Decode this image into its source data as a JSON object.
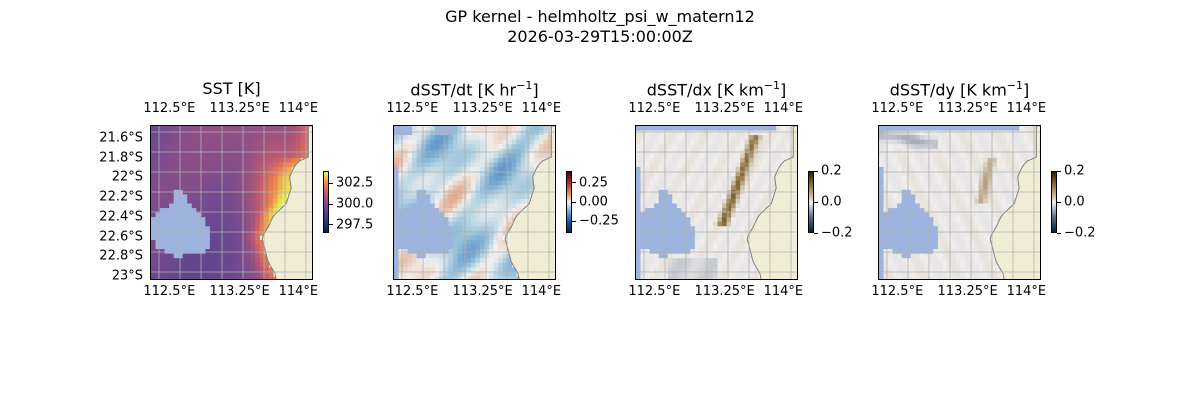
{
  "figure": {
    "title_line1": "GP kernel - helmholtz_psi_w_matern12",
    "title_line2": "2026-03-29T15:00:00Z"
  },
  "colors": {
    "land": "#efedd6",
    "land_edge": "#7f7f7f",
    "masked": "#9db4df",
    "grid": "#b0b0b0",
    "sst_low": "#6b4a8b",
    "sst_high": "#e9784a"
  },
  "chart_data": [
    {
      "type": "heatmap",
      "title": "SST [K]",
      "variable": "sst",
      "colormap": "thermal",
      "clim": [
        296.5,
        304.0
      ],
      "colorbar_ticks": [
        "302.5",
        "300.0",
        "297.5"
      ],
      "x_ticks": [
        "112.5°E",
        "113.25°E",
        "114°E"
      ],
      "y_ticks": [
        "21.6°S",
        "21.8°S",
        "22°S",
        "22.2°S",
        "22.4°S",
        "22.6°S",
        "22.8°S",
        "23°S"
      ],
      "show_y_ticks": true,
      "lon_range": [
        112.5,
        114.25
      ],
      "lat_range": [
        -23.0,
        -21.5
      ],
      "grid": true
    },
    {
      "type": "heatmap",
      "title_main": "dSST/dt [K hr",
      "title_sup": "−1",
      "title_end": "]",
      "variable": "dsst_dt",
      "colormap": "balance",
      "clim": [
        -0.4,
        0.4
      ],
      "colorbar_ticks": [
        "0.25",
        "0.00",
        "−0.25"
      ],
      "x_ticks": [
        "112.5°E",
        "113.25°E",
        "114°E"
      ],
      "show_y_ticks": false,
      "lon_range": [
        112.5,
        114.25
      ],
      "lat_range": [
        -23.0,
        -21.5
      ],
      "grid": true
    },
    {
      "type": "heatmap",
      "title_main": "dSST/dx [K km",
      "title_sup": "−1",
      "title_end": "]",
      "variable": "dsst_dx",
      "colormap": "diff",
      "clim": [
        -0.2,
        0.2
      ],
      "colorbar_ticks": [
        "0.2",
        "0.0",
        "−0.2"
      ],
      "x_ticks": [
        "112.5°E",
        "113.25°E",
        "114°E"
      ],
      "show_y_ticks": false,
      "lon_range": [
        112.5,
        114.25
      ],
      "lat_range": [
        -23.0,
        -21.5
      ],
      "grid": true
    },
    {
      "type": "heatmap",
      "title_main": "dSST/dy [K km",
      "title_sup": "−1",
      "title_end": "]",
      "variable": "dsst_dy",
      "colormap": "diff",
      "clim": [
        -0.2,
        0.2
      ],
      "colorbar_ticks": [
        "0.2",
        "0.0",
        "−0.2"
      ],
      "x_ticks": [
        "112.5°E",
        "113.25°E",
        "114°E"
      ],
      "show_y_ticks": false,
      "lon_range": [
        112.5,
        114.25
      ],
      "lat_range": [
        -23.0,
        -21.5
      ],
      "grid": true
    }
  ]
}
